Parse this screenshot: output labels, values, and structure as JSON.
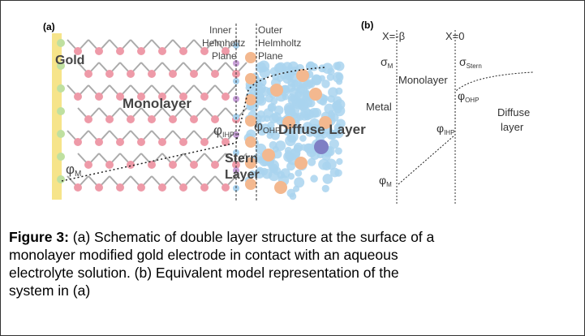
{
  "panel_a": {
    "label": "(a)",
    "gold": "Gold",
    "monolayer": "Monolayer",
    "inner_plane": [
      "Inner",
      "Helmholtz",
      "Plane"
    ],
    "outer_plane": [
      "Outer",
      "Helmholtz",
      "Plane"
    ],
    "phi_ohp": {
      "symbol": "φ",
      "sub": "OHP"
    },
    "phi_ihp": {
      "symbol": "φ",
      "sub": "IHP"
    },
    "phi_m": {
      "symbol": "φ",
      "sub": "M"
    },
    "diffuse": "Diffuse Layer",
    "stern": [
      "Stern",
      "Layer"
    ]
  },
  "panel_b": {
    "label": "(b)",
    "x_left": "X=-β",
    "x_right": "X=0",
    "sigma_m": {
      "symbol": "σ",
      "sub": "M"
    },
    "sigma_stern": {
      "symbol": "σ",
      "sub": "Stern"
    },
    "monolayer": "Monolayer",
    "metal": "Metal",
    "phi_ohp": {
      "symbol": "φ",
      "sub": "OHP"
    },
    "phi_ihp": {
      "symbol": "φ",
      "sub": "IHP"
    },
    "phi_m": {
      "symbol": "φ",
      "sub": "M"
    },
    "diffuse": [
      "Diffuse",
      "layer"
    ]
  },
  "caption": {
    "label": "Figure 3:",
    "lines": [
      " (a) Schematic of double layer structure at the surface of a",
      "monolayer modified gold electrode in contact with an aqueous",
      "electrolyte solution. (b) Equivalent model representation of the",
      "system in (a)"
    ]
  }
}
